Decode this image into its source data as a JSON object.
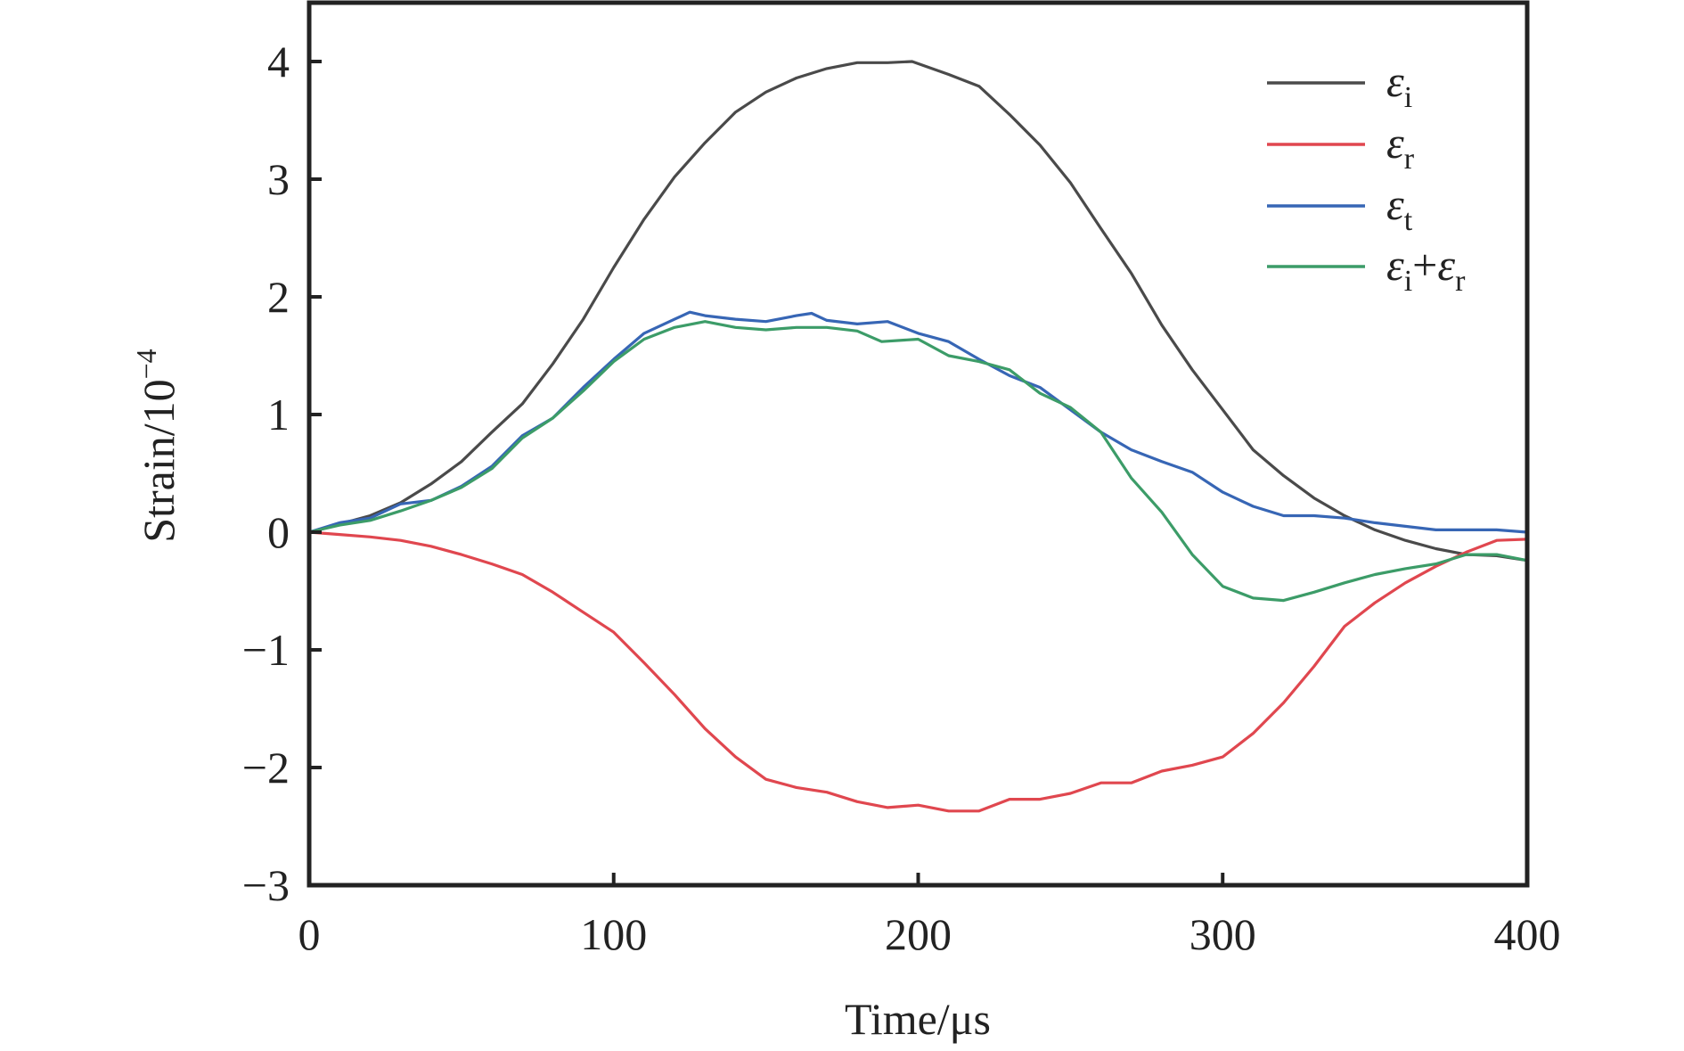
{
  "chart_data": {
    "type": "line",
    "title": "",
    "xlabel": "Time/μs",
    "ylabel": "Strain/10",
    "ylabel_exponent": "−4",
    "xlim": [
      0,
      400
    ],
    "ylim": [
      -3,
      4.5
    ],
    "xticks": [
      0,
      100,
      200,
      300,
      400
    ],
    "xtick_labels": [
      "0",
      "100",
      "200",
      "300",
      "400"
    ],
    "yticks": [
      4,
      3,
      2,
      1,
      0,
      -1,
      -2,
      -3
    ],
    "ytick_labels": [
      "4",
      "3",
      "2",
      "1",
      "0",
      "−1",
      "−2",
      "−3"
    ],
    "grid": false,
    "legend_position": "top-right",
    "series": [
      {
        "name": "εi",
        "label_main": "ε",
        "label_sub": "i",
        "color": "#4a4a4a",
        "x": [
          0,
          10,
          20,
          30,
          40,
          50,
          60,
          70,
          80,
          90,
          100,
          110,
          120,
          130,
          140,
          150,
          160,
          170,
          180,
          190,
          198,
          210,
          220,
          230,
          240,
          250,
          260,
          270,
          280,
          290,
          300,
          310,
          320,
          330,
          340,
          350,
          360,
          370,
          380,
          390,
          400
        ],
        "y": [
          0,
          0.07,
          0.14,
          0.25,
          0.41,
          0.6,
          0.85,
          1.09,
          1.43,
          1.81,
          2.25,
          2.66,
          3.02,
          3.31,
          3.57,
          3.74,
          3.86,
          3.94,
          3.99,
          3.99,
          4.0,
          3.89,
          3.79,
          3.55,
          3.29,
          2.97,
          2.58,
          2.2,
          1.76,
          1.38,
          1.04,
          0.7,
          0.48,
          0.29,
          0.14,
          0.02,
          -0.07,
          -0.14,
          -0.19,
          -0.2,
          -0.24
        ]
      },
      {
        "name": "εr",
        "label_main": "ε",
        "label_sub": "r",
        "color": "#e0474f",
        "x": [
          0,
          10,
          20,
          30,
          40,
          50,
          60,
          70,
          80,
          90,
          100,
          110,
          120,
          130,
          140,
          150,
          160,
          170,
          180,
          190,
          200,
          210,
          220,
          230,
          240,
          250,
          260,
          270,
          280,
          290,
          300,
          310,
          320,
          330,
          340,
          350,
          360,
          370,
          380,
          390,
          400
        ],
        "y": [
          0,
          -0.02,
          -0.04,
          -0.07,
          -0.12,
          -0.19,
          -0.27,
          -0.36,
          -0.51,
          -0.68,
          -0.85,
          -1.11,
          -1.38,
          -1.67,
          -1.91,
          -2.1,
          -2.17,
          -2.21,
          -2.29,
          -2.34,
          -2.32,
          -2.37,
          -2.37,
          -2.27,
          -2.27,
          -2.22,
          -2.13,
          -2.13,
          -2.03,
          -1.98,
          -1.91,
          -1.71,
          -1.45,
          -1.14,
          -0.8,
          -0.6,
          -0.43,
          -0.29,
          -0.17,
          -0.07,
          -0.06
        ]
      },
      {
        "name": "εt",
        "label_main": "ε",
        "label_sub": "t",
        "color": "#3766b5",
        "x": [
          0,
          10,
          20,
          30,
          40,
          50,
          60,
          70,
          80,
          90,
          100,
          110,
          120,
          125,
          130,
          140,
          150,
          160,
          165,
          170,
          180,
          190,
          200,
          210,
          220,
          230,
          240,
          250,
          260,
          270,
          280,
          290,
          300,
          310,
          320,
          330,
          340,
          350,
          360,
          370,
          380,
          390,
          400
        ],
        "y": [
          0,
          0.08,
          0.12,
          0.24,
          0.27,
          0.39,
          0.56,
          0.82,
          0.97,
          1.23,
          1.47,
          1.69,
          1.81,
          1.87,
          1.84,
          1.81,
          1.79,
          1.84,
          1.86,
          1.8,
          1.77,
          1.79,
          1.69,
          1.62,
          1.47,
          1.33,
          1.23,
          1.04,
          0.85,
          0.7,
          0.6,
          0.51,
          0.34,
          0.22,
          0.14,
          0.14,
          0.12,
          0.08,
          0.05,
          0.02,
          0.02,
          0.02,
          0.0
        ]
      },
      {
        "name": "εi+εr",
        "label_main": "ε",
        "label_sub": "i",
        "label_plus": "+",
        "label_main2": "ε",
        "label_sub2": "r",
        "color": "#3c9c68",
        "x": [
          0,
          10,
          20,
          30,
          40,
          50,
          60,
          70,
          80,
          90,
          100,
          110,
          120,
          130,
          140,
          150,
          160,
          170,
          180,
          188,
          200,
          210,
          220,
          230,
          240,
          250,
          260,
          270,
          280,
          290,
          300,
          310,
          320,
          330,
          340,
          350,
          360,
          370,
          380,
          390,
          400
        ],
        "y": [
          0,
          0.06,
          0.1,
          0.18,
          0.27,
          0.38,
          0.54,
          0.8,
          0.97,
          1.2,
          1.45,
          1.64,
          1.74,
          1.79,
          1.74,
          1.72,
          1.74,
          1.74,
          1.71,
          1.62,
          1.64,
          1.5,
          1.45,
          1.38,
          1.18,
          1.06,
          0.85,
          0.46,
          0.17,
          -0.19,
          -0.46,
          -0.56,
          -0.58,
          -0.51,
          -0.43,
          -0.36,
          -0.31,
          -0.27,
          -0.19,
          -0.19,
          -0.24
        ]
      }
    ]
  }
}
